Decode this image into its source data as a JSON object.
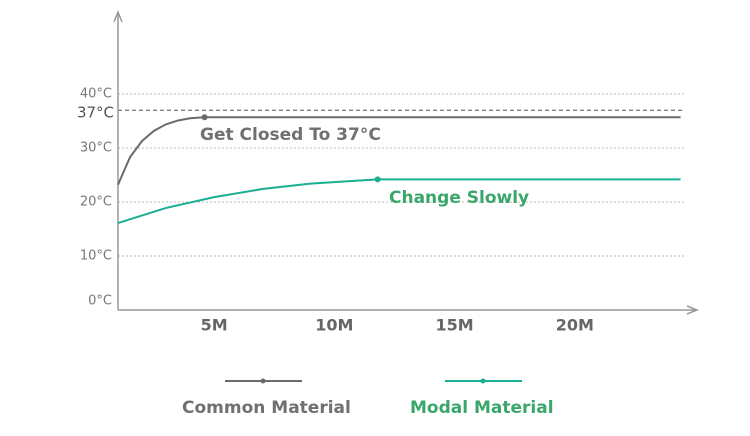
{
  "chart_data": {
    "type": "line",
    "x_unit_note": null,
    "xlim": [
      1,
      25
    ],
    "ylim": [
      0,
      55
    ],
    "xticks": [
      {
        "value": 5,
        "label": "5M"
      },
      {
        "value": 10,
        "label": "10M"
      },
      {
        "value": 15,
        "label": "15M"
      },
      {
        "value": 20,
        "label": "20M"
      }
    ],
    "yticks": [
      {
        "value": 0,
        "label": "0°C"
      },
      {
        "value": 10,
        "label": "10°C"
      },
      {
        "value": 20,
        "label": "20°C"
      },
      {
        "value": 30,
        "label": "30°C"
      },
      {
        "value": 40,
        "label": "40°C"
      }
    ],
    "reference_line": {
      "value": 37,
      "label": "37°C"
    },
    "grid": true,
    "series": [
      {
        "name": "Common Material",
        "color": "#6b6b6b",
        "text_color": "#707070",
        "x": [
          1,
          1.5,
          2,
          2.5,
          3,
          3.5,
          4,
          4.6,
          24.4
        ],
        "values": [
          23.2,
          28.3,
          31.3,
          33.2,
          34.4,
          35.1,
          35.5,
          35.7,
          35.7
        ],
        "highlight": 7,
        "annotation": "Get Closed To 37°C"
      },
      {
        "name": "Modal Material",
        "color": "#1aae92",
        "text_color": "#3aa66a",
        "x": [
          1,
          3,
          5,
          7,
          9,
          11.8,
          24.4
        ],
        "values": [
          16.1,
          18.9,
          20.9,
          22.4,
          23.4,
          24.2,
          24.2
        ],
        "highlight": 5,
        "annotation": "Change Slowly"
      }
    ]
  }
}
